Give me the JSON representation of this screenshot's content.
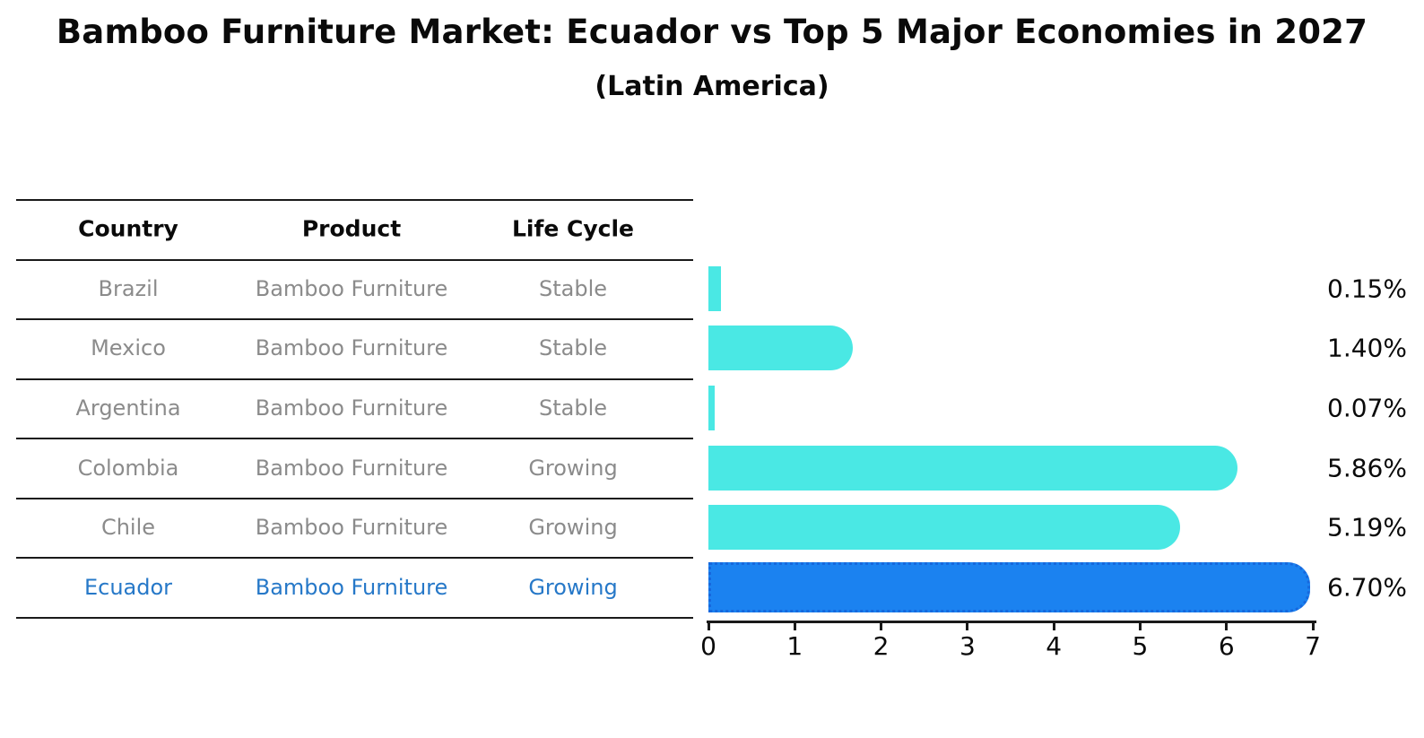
{
  "title": "Bamboo Furniture Market: Ecuador vs Top 5 Major Economies in 2027",
  "subtitle": "(Latin America)",
  "table": {
    "headers": [
      "Country",
      "Product",
      "Life Cycle"
    ],
    "rows": [
      {
        "country": "Brazil",
        "product": "Bamboo Furniture",
        "life_cycle": "Stable",
        "highlight": false
      },
      {
        "country": "Mexico",
        "product": "Bamboo Furniture",
        "life_cycle": "Stable",
        "highlight": false
      },
      {
        "country": "Argentina",
        "product": "Bamboo Furniture",
        "life_cycle": "Stable",
        "highlight": false
      },
      {
        "country": "Colombia",
        "product": "Bamboo Furniture",
        "life_cycle": "Growing",
        "highlight": false
      },
      {
        "country": "Chile",
        "product": "Bamboo Furniture",
        "life_cycle": "Growing",
        "highlight": false
      },
      {
        "country": "Ecuador",
        "product": "Bamboo Furniture",
        "life_cycle": "Growing",
        "highlight": true
      }
    ]
  },
  "chart_data": {
    "type": "bar",
    "orientation": "horizontal",
    "title": "Bamboo Furniture Market: Ecuador vs Top 5 Major Economies in 2027 (Latin America)",
    "categories": [
      "Brazil",
      "Mexico",
      "Argentina",
      "Colombia",
      "Chile",
      "Ecuador"
    ],
    "values": [
      0.15,
      1.4,
      0.07,
      5.86,
      5.19,
      6.7
    ],
    "value_labels": [
      "0.15%",
      "1.40%",
      "0.07%",
      "5.86%",
      "5.19%",
      "6.70%"
    ],
    "highlight_category": "Ecuador",
    "xlim": [
      0,
      7
    ],
    "x_ticks": [
      "0",
      "1",
      "2",
      "3",
      "4",
      "5",
      "6",
      "7"
    ],
    "grid": false,
    "legend": "none"
  },
  "colors": {
    "bar": "#4AE8E4",
    "highlight_bar": "#1B82F0",
    "highlight_bar_edge": "#1668DD",
    "row_text": "#8B8B8B",
    "highlight_text": "#2678C8",
    "header_text": "#0a0a0a",
    "line": "#1A1A1A"
  }
}
